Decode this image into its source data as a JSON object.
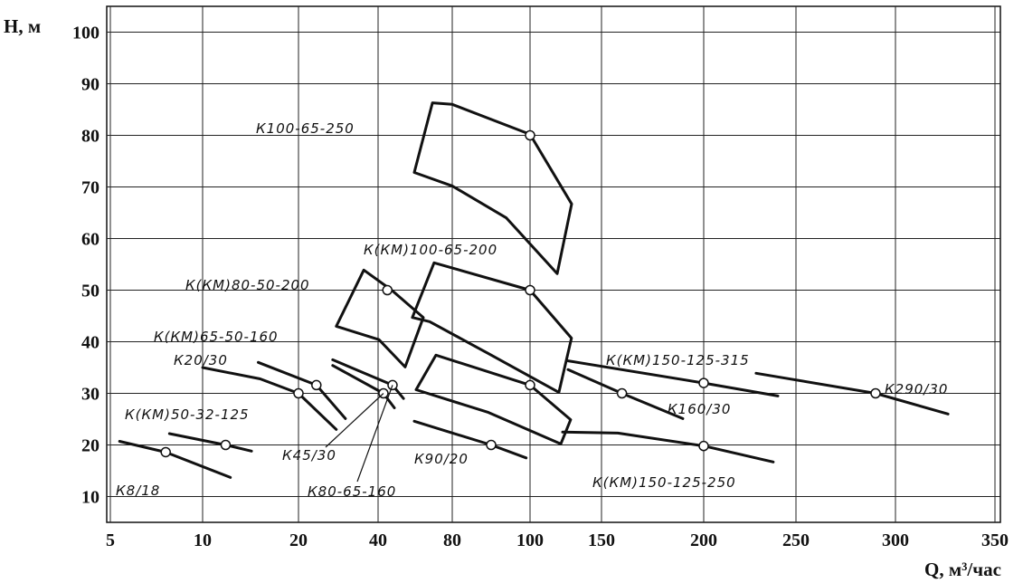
{
  "chart_data": {
    "type": "line",
    "y_label": "H, м",
    "x_label": "Q, м³/час",
    "xlim": [
      5,
      350
    ],
    "ylim": [
      5,
      105
    ],
    "xticks": [
      5,
      10,
      20,
      40,
      80,
      100,
      150,
      200,
      250,
      300,
      350
    ],
    "yticks": [
      10,
      20,
      30,
      40,
      50,
      60,
      70,
      80,
      90,
      100
    ],
    "grid": true,
    "color": "#111111",
    "series": [
      {
        "name": "К100-65-250",
        "shape": "zone",
        "x": [
          59.5,
          69.3,
          80,
          100,
          129.1,
          119,
          93.9,
          80,
          59.5
        ],
        "values": [
          72.8,
          86.3,
          86,
          80.2,
          66.7,
          53.2,
          64,
          70.2,
          72.8
        ],
        "point_x": 100,
        "point_y": 80
      },
      {
        "name": "К(КМ)100-65-200",
        "shape": "zone",
        "x": [
          58.5,
          70.2,
          100,
          129,
          120.2,
          89.3,
          67.8,
          58.5
        ],
        "values": [
          44.7,
          55.3,
          50,
          40.7,
          30.2,
          37.7,
          43.9,
          44.7
        ],
        "point_x": 100,
        "point_y": 50
      },
      {
        "name": "К(КМ)80-50-200",
        "shape": "zone",
        "x": [
          29.5,
          36.4,
          47.3,
          64.4,
          54.6,
          40.5,
          29.5
        ],
        "values": [
          43,
          53.9,
          50,
          44.7,
          35.1,
          40.4,
          43
        ],
        "point_x": 45,
        "point_y": 50
      },
      {
        "name": null,
        "shape": "zone",
        "x": [
          60.5,
          71.2,
          100,
          128.4,
          121.5,
          89.3,
          60.5
        ],
        "values": [
          30.7,
          37.4,
          31.6,
          24.9,
          20.2,
          26.3,
          30.7
        ],
        "point_x": 100,
        "point_y": 31.6
      },
      {
        "name": "К(КМ)65-50-160",
        "shape": "line",
        "x": [
          15.8,
          24.5,
          31.8
        ],
        "values": [
          36,
          31.6,
          25.1
        ],
        "point_x": 24.5,
        "point_y": 31.6
      },
      {
        "name": "К20/30",
        "shape": "line",
        "x": [
          10,
          16,
          20,
          29.5
        ],
        "values": [
          35,
          32.8,
          30,
          23
        ],
        "point_x": 20,
        "point_y": 30
      },
      {
        "name": "К(КМ)50-32-125",
        "shape": "line",
        "x": [
          8.2,
          12.4,
          15.1
        ],
        "values": [
          22.2,
          20,
          18.8
        ],
        "point_x": 12.4,
        "point_y": 20
      },
      {
        "name": "К8/18",
        "shape": "line",
        "x": [
          5.5,
          8,
          12.9
        ],
        "values": [
          20.7,
          18.6,
          13.7
        ],
        "point_x": 8,
        "point_y": 18.6
      },
      {
        "name": "К45/30",
        "shape": "line",
        "x": [
          28.6,
          42.9,
          48.8
        ],
        "values": [
          35.4,
          30,
          27.2
        ],
        "point_x": 42.9,
        "point_y": 30
      },
      {
        "name": "К80-65-160",
        "shape": "line",
        "x": [
          28.6,
          47.8,
          53.7
        ],
        "values": [
          36.5,
          31.6,
          29
        ],
        "point_x": 47.8,
        "point_y": 31.6
      },
      {
        "name": "К90/20",
        "shape": "line",
        "x": [
          59.5,
          90,
          99
        ],
        "values": [
          24.6,
          20,
          17.5
        ],
        "point_x": 90,
        "point_y": 20
      },
      {
        "name": "К(КМ)150-125-315",
        "shape": "line",
        "x": [
          126.6,
          200,
          240.2
        ],
        "values": [
          36.3,
          32,
          29.5
        ],
        "point_x": 200,
        "point_y": 32
      },
      {
        "name": "К160/30",
        "shape": "line",
        "x": [
          126.6,
          160,
          189.8
        ],
        "values": [
          34.6,
          30,
          25.1
        ],
        "point_x": 160,
        "point_y": 30
      },
      {
        "name": "К290/30",
        "shape": "line",
        "x": [
          228.4,
          290,
          326.4
        ],
        "values": [
          33.9,
          30,
          26
        ],
        "point_x": 290,
        "point_y": 30
      },
      {
        "name": "К(КМ)150-125-250",
        "shape": "line",
        "x": [
          122.8,
          158,
          200,
          237.7
        ],
        "values": [
          22.5,
          22.3,
          19.8,
          16.7
        ],
        "point_x": 200,
        "point_y": 19.8
      }
    ]
  }
}
